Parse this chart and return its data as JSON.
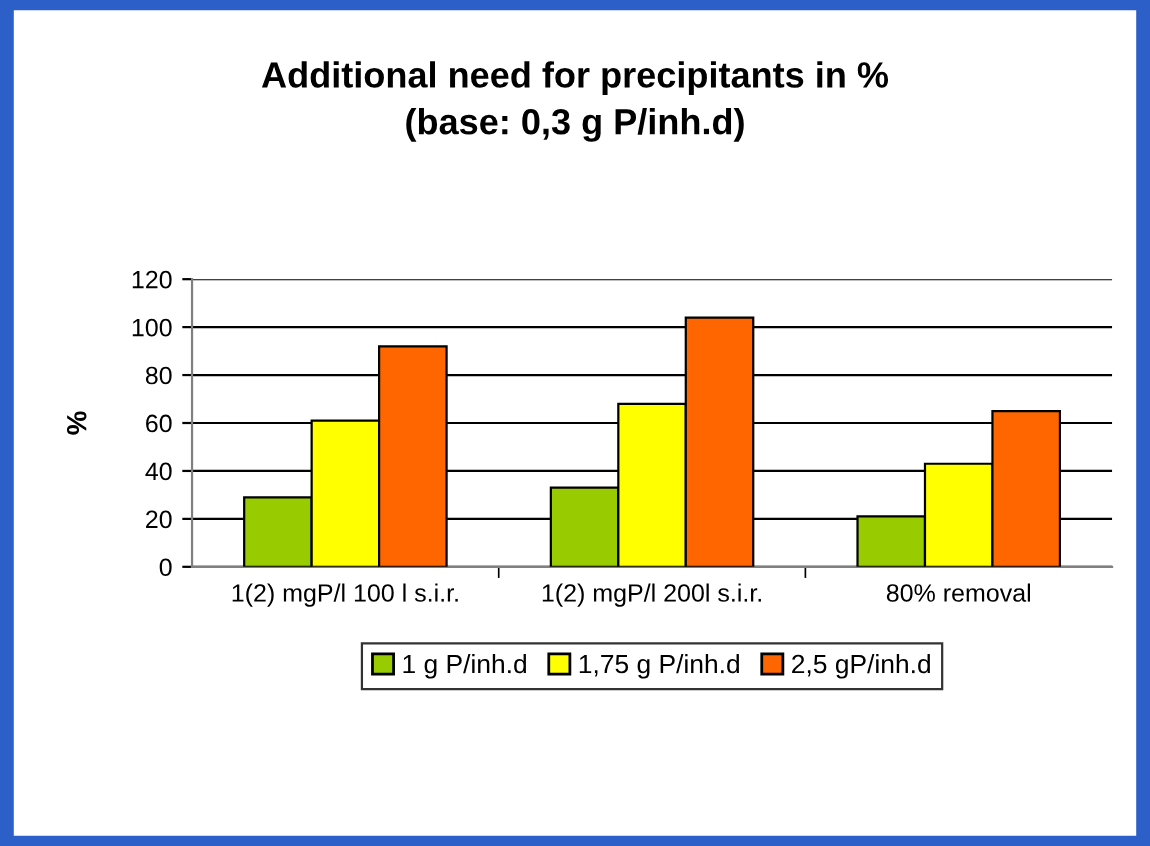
{
  "chart_data": {
    "type": "bar",
    "title": "Additional need for precipitants in %\n(base: 0,3 g P/inh.d)",
    "ylabel": "%",
    "categories": [
      "1(2) mgP/l 100 l s.i.r.",
      "1(2) mgP/l 200l s.i.r.",
      "80% removal"
    ],
    "series": [
      {
        "name": "1 g P/inh.d",
        "color": "#99cc00",
        "values": [
          29,
          33,
          21
        ]
      },
      {
        "name": "1,75 g P/inh.d",
        "color": "#ffff00",
        "values": [
          61,
          68,
          43
        ]
      },
      {
        "name": "2,5 gP/inh.d",
        "color": "#ff6600",
        "values": [
          92,
          104,
          65
        ]
      }
    ],
    "ylim": [
      0,
      120
    ],
    "yticks": [
      0,
      20,
      40,
      60,
      80,
      100,
      120
    ],
    "grid": "y",
    "legend": "bottom"
  }
}
